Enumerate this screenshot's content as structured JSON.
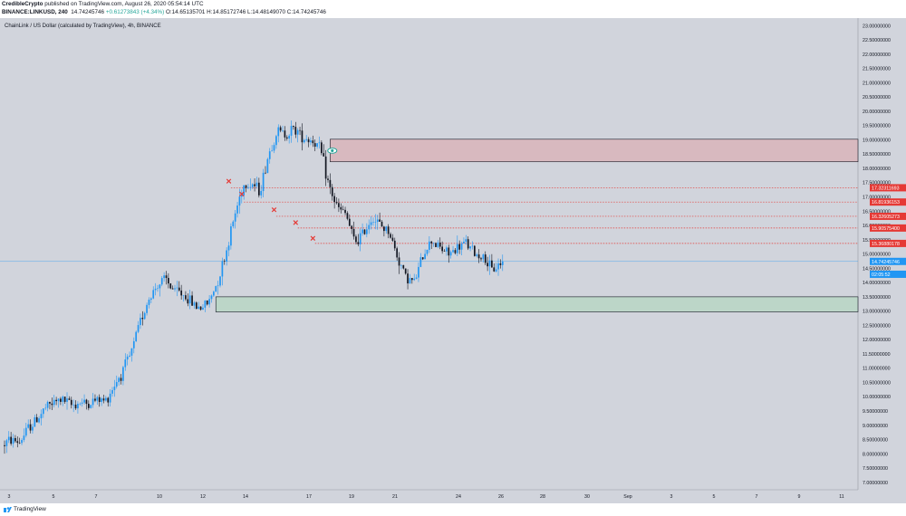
{
  "header": {
    "author": "CredibleCrypto",
    "published_text": "published on TradingView.com, August 26, 2020 05:54:14 UTC",
    "symbol_line": "BINANCE:LINKUSD, 240",
    "price": "14.74245746",
    "change": "+0.61273843 (+4.34%)",
    "open": "O:14.65135701",
    "high": "H:14.85172746",
    "low": "L:14.48149070",
    "close": "C:14.74245746"
  },
  "footer": {
    "brand": "TradingView"
  },
  "colors": {
    "background": "#d1d4dc",
    "up": "#2196f3",
    "down": "#131722",
    "resistance_fill": "#d8b9bf",
    "support_fill": "#bcd6c8",
    "dotted": "#e53935",
    "label_red": "#e53935",
    "label_blue": "#2196f3",
    "eye": "#26a69a"
  },
  "chart_data": {
    "type": "candlestick",
    "title": "ChainLink / US Dollar (calculated by TradingView), 4h, BINANCE",
    "ylim": [
      6.9,
      23.2
    ],
    "x_ticks": [
      "3",
      "5",
      "7",
      "10",
      "12",
      "14",
      "17",
      "19",
      "21",
      "24",
      "26",
      "28",
      "30",
      "Sep",
      "3",
      "5",
      "7",
      "9",
      "11"
    ],
    "y_ticks": [
      "23.00000000",
      "22.50000000",
      "22.00000000",
      "21.50000000",
      "21.00000000",
      "20.50000000",
      "20.00000000",
      "19.50000000",
      "19.00000000",
      "18.50000000",
      "18.00000000",
      "17.50000000",
      "17.00000000",
      "16.50000000",
      "16.00000000",
      "15.50000000",
      "15.00000000",
      "14.50000000",
      "14.00000000",
      "13.50000000",
      "13.00000000",
      "12.50000000",
      "12.00000000",
      "11.50000000",
      "11.00000000",
      "10.50000000",
      "10.00000000",
      "9.50000000",
      "9.00000000",
      "8.50000000",
      "8.00000000",
      "7.50000000",
      "7.00000000"
    ],
    "guide": [
      8.3,
      8.5,
      8.4,
      8.9,
      9.2,
      9.6,
      9.8,
      9.9,
      9.7,
      9.8,
      9.75,
      9.9,
      9.85,
      10.4,
      10.9,
      11.5,
      12.6,
      13.4,
      13.9,
      14.1,
      13.7,
      13.6,
      13.3,
      13.1,
      13.3,
      14.0,
      15.0,
      16.3,
      17.4,
      17.5,
      17.2,
      18.5,
      19.3,
      19.2,
      19.4,
      19.1,
      19.0,
      18.7,
      17.4,
      16.6,
      16.4,
      15.4,
      15.7,
      16.3,
      16.0,
      15.8,
      14.9,
      14.2,
      14.0,
      15.0,
      15.5,
      15.2,
      15.0,
      15.2,
      15.4,
      15.0,
      14.9,
      14.4,
      14.7
    ],
    "candle_count": 232,
    "zones": [
      {
        "name": "resistance",
        "low": 18.23,
        "high": 19.02
      },
      {
        "name": "support",
        "low": 12.97,
        "high": 13.5
      }
    ],
    "levels": [
      {
        "value": 17.32,
        "label": "17.32311693"
      },
      {
        "value": 16.82,
        "label": "16.81936153"
      },
      {
        "value": 16.32,
        "label": "16.32605273"
      },
      {
        "value": 15.91,
        "label": "15.90575400"
      },
      {
        "value": 15.37,
        "label": "15.36880178"
      }
    ],
    "current_price": {
      "value": 14.74,
      "label": "14.74245746"
    },
    "countdown": {
      "label": "02:05:52"
    },
    "x_marks": [
      {
        "candle": 104,
        "value": 17.55
      },
      {
        "candle": 110,
        "value": 17.1
      },
      {
        "candle": 125,
        "value": 16.55
      },
      {
        "candle": 135,
        "value": 16.1
      },
      {
        "candle": 143,
        "value": 15.55
      }
    ],
    "eye_marker": {
      "candle": 152,
      "value": 18.62
    }
  }
}
